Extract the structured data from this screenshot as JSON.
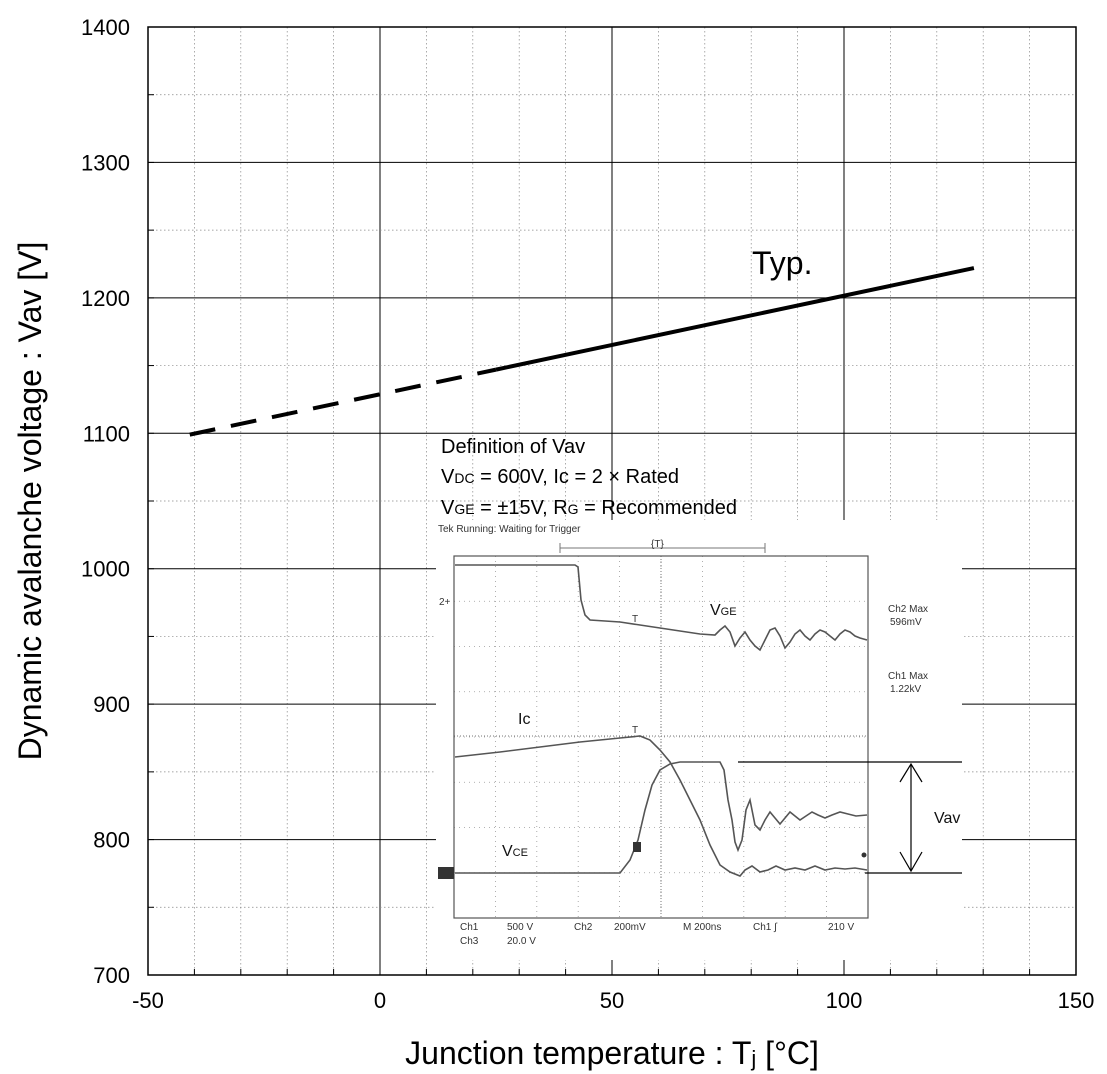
{
  "chart_data": {
    "type": "line",
    "xlabel": "Junction temperature : Tj [°C]",
    "ylabel": "Dynamic avalanche voltage : Vav [V]",
    "xlim": [
      -50,
      150
    ],
    "ylim": [
      700,
      1400
    ],
    "x_ticks": [
      "-50",
      "0",
      "50",
      "100",
      "150"
    ],
    "y_ticks": [
      "700",
      "800",
      "900",
      "1000",
      "1100",
      "1200",
      "1300",
      "1400"
    ],
    "grid": true,
    "series": [
      {
        "name": "Typ.",
        "segments": [
          {
            "style": "dashed",
            "x": [
              -41,
              25
            ],
            "y": [
              1099,
              1147
            ]
          },
          {
            "style": "solid",
            "x": [
              25,
              128
            ],
            "y": [
              1147,
              1222
            ]
          }
        ]
      }
    ],
    "annotations": {
      "typ_label": "Typ.",
      "definition": {
        "title": "Definition of Vav",
        "line1": "VDC = 600V, Ic = 2 × Rated",
        "line2": "VGE = ±15V, RG = Recommended"
      }
    },
    "inset": {
      "header": "Tek Running: Waiting for Trigger",
      "trigger": "{T}",
      "labels": {
        "vge": "VGE",
        "ic": "Ic",
        "vce": "VCE",
        "vav": "Vav"
      },
      "readouts": {
        "ch2_max_label": "Ch2 Max",
        "ch2_max_value": "596mV",
        "ch1_max_label": "Ch1 Max",
        "ch1_max_value": "1.22kV"
      },
      "footer": {
        "ch1": "Ch1",
        "ch1_scale": "500 V",
        "ch2": "Ch2",
        "ch2_scale": "200mV",
        "time": "M 200ns",
        "trig": "Ch1 ∫",
        "trig_level": "210 V",
        "ch3": "Ch3",
        "ch3_scale": "20.0 V"
      }
    }
  }
}
